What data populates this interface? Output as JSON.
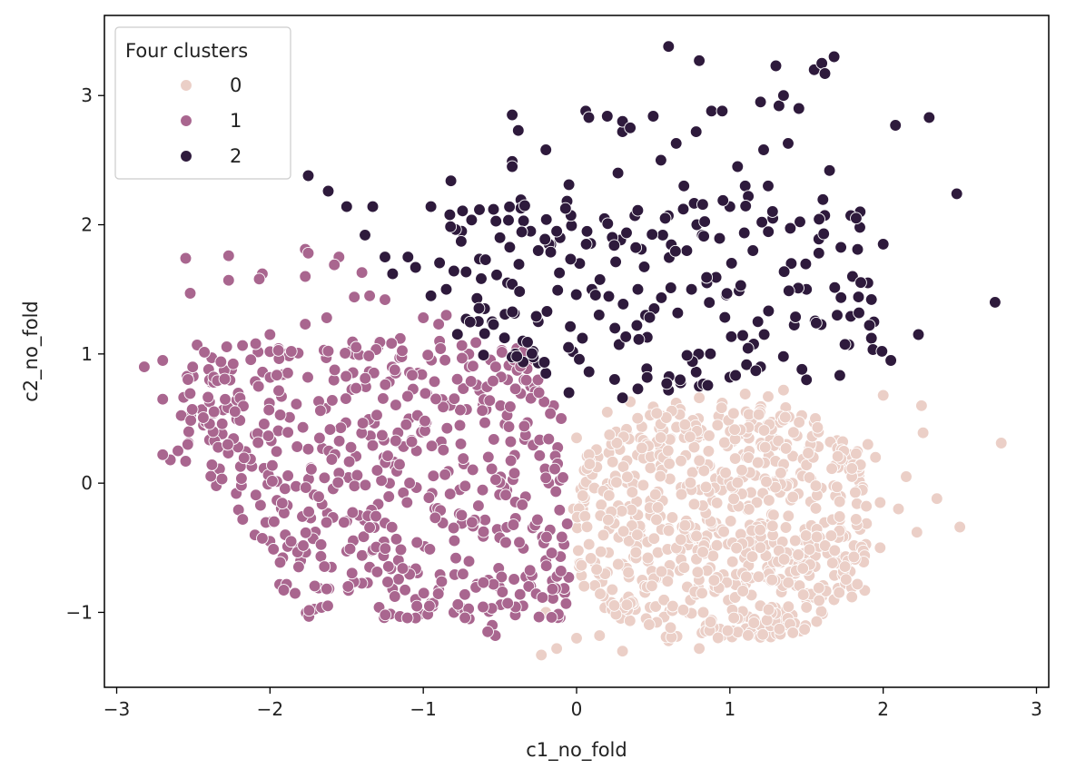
{
  "chart_data": {
    "type": "scatter",
    "title": "",
    "xlabel": "c1_no_fold",
    "ylabel": "c2_no_fold",
    "xlim": [
      -3.08,
      3.08
    ],
    "ylim": [
      -1.58,
      3.62
    ],
    "x_ticks": [
      -3,
      -2,
      -1,
      0,
      1,
      2,
      3
    ],
    "x_tick_labels": [
      "−3",
      "−2",
      "−1",
      "0",
      "1",
      "2",
      "3"
    ],
    "y_ticks": [
      -1,
      0,
      1,
      2,
      3
    ],
    "y_tick_labels": [
      "−1",
      "0",
      "1",
      "2",
      "3"
    ],
    "grid": false,
    "legend": {
      "title": "Four clusters",
      "placement": "top-left",
      "entries": [
        {
          "label": "0",
          "color": "#ebcfc7"
        },
        {
          "label": "1",
          "color": "#a9668f"
        },
        {
          "label": "2",
          "color": "#2e1a3c"
        }
      ]
    },
    "series": [
      {
        "name": "0",
        "color": "#ebcfc7",
        "points": [
          [
            2.77,
            0.31
          ],
          [
            2.5,
            -0.34
          ],
          [
            2.35,
            -0.12
          ],
          [
            2.25,
            0.6
          ],
          [
            2.26,
            0.39
          ],
          [
            2.22,
            -0.38
          ],
          [
            2.15,
            0.05
          ],
          [
            2.1,
            -0.2
          ],
          [
            2.0,
            0.68
          ],
          [
            1.95,
            0.2
          ],
          [
            1.9,
            0.3
          ],
          [
            1.88,
            -0.83
          ],
          [
            1.98,
            -0.5
          ],
          [
            1.98,
            -0.15
          ],
          [
            1.7,
            0.33
          ],
          [
            1.55,
            0.47
          ],
          [
            1.35,
            0.72
          ],
          [
            1.25,
            0.67
          ],
          [
            1.1,
            0.69
          ],
          [
            0.95,
            0.62
          ],
          [
            0.8,
            0.66
          ],
          [
            0.65,
            0.62
          ],
          [
            0.5,
            0.59
          ],
          [
            0.35,
            0.63
          ],
          [
            0.2,
            0.55
          ],
          [
            0.0,
            0.35
          ],
          [
            0.05,
            0.1
          ],
          [
            -0.02,
            -0.2
          ],
          [
            -0.15,
            -0.8
          ],
          [
            -0.2,
            -1.0
          ],
          [
            -0.23,
            -1.33
          ],
          [
            -0.13,
            -1.28
          ],
          [
            0.0,
            -1.2
          ],
          [
            0.15,
            -1.18
          ],
          [
            0.3,
            -1.3
          ],
          [
            0.6,
            -1.22
          ],
          [
            0.8,
            -1.28
          ],
          [
            0.95,
            -1.18
          ],
          [
            1.2,
            -1.1
          ],
          [
            1.35,
            -1.05
          ],
          [
            1.5,
            -0.9
          ],
          [
            1.75,
            -0.78
          ],
          [
            1.7,
            -0.56
          ],
          [
            1.55,
            -0.42
          ]
        ],
        "core_region": {
          "x": [
            0.0,
            1.9
          ],
          "y": [
            -1.2,
            0.6
          ],
          "count": 720
        }
      },
      {
        "name": "1",
        "color": "#a9668f",
        "points": [
          [
            -2.82,
            0.9
          ],
          [
            -2.7,
            0.95
          ],
          [
            -2.7,
            0.65
          ],
          [
            -2.55,
            1.74
          ],
          [
            -2.52,
            1.47
          ],
          [
            -2.27,
            1.76
          ],
          [
            -2.27,
            1.57
          ],
          [
            -2.05,
            1.62
          ],
          [
            -2.07,
            1.58
          ],
          [
            -1.77,
            1.81
          ],
          [
            -1.75,
            1.78
          ],
          [
            -1.77,
            1.6
          ],
          [
            -1.55,
            1.75
          ],
          [
            -1.58,
            1.69
          ],
          [
            -1.4,
            1.63
          ],
          [
            -1.45,
            1.44
          ],
          [
            -1.35,
            1.45
          ],
          [
            -1.25,
            1.42
          ],
          [
            -1.63,
            1.28
          ],
          [
            -1.77,
            1.23
          ],
          [
            -2.0,
            1.15
          ],
          [
            -2.38,
            0.97
          ],
          [
            -2.4,
            0.88
          ],
          [
            -2.25,
            0.88
          ],
          [
            -2.6,
            0.25
          ],
          [
            -2.65,
            0.18
          ],
          [
            -2.7,
            0.22
          ],
          [
            -2.55,
            0.17
          ],
          [
            -2.35,
            -0.02
          ],
          [
            -2.22,
            -0.08
          ],
          [
            -2.0,
            -0.3
          ],
          [
            -1.9,
            -0.4
          ],
          [
            -2.0,
            -0.45
          ],
          [
            -1.8,
            -0.6
          ],
          [
            -1.6,
            -0.65
          ],
          [
            -1.35,
            -0.65
          ],
          [
            -1.2,
            -0.82
          ],
          [
            -1.05,
            -0.9
          ],
          [
            -0.95,
            -0.93
          ],
          [
            -0.8,
            -1.0
          ],
          [
            -0.7,
            -1.05
          ],
          [
            -0.55,
            -1.1
          ],
          [
            -0.53,
            -1.18
          ],
          [
            -0.4,
            -1.02
          ],
          [
            -0.35,
            -0.95
          ],
          [
            -0.58,
            -1.15
          ],
          [
            -1.0,
            1.28
          ],
          [
            -0.9,
            1.23
          ],
          [
            -0.85,
            1.3
          ],
          [
            -1.15,
            1.12
          ],
          [
            -0.7,
            0.9
          ],
          [
            -0.45,
            0.8
          ],
          [
            -0.3,
            0.75
          ],
          [
            -0.15,
            0.6
          ],
          [
            -0.1,
            0.5
          ]
        ],
        "core_region": {
          "x": [
            -2.6,
            -0.05
          ],
          "y": [
            -1.05,
            1.1
          ],
          "count": 560
        }
      },
      {
        "name": "2",
        "color": "#2e1a3c",
        "points": [
          [
            -1.75,
            2.38
          ],
          [
            -1.62,
            2.26
          ],
          [
            -1.5,
            2.14
          ],
          [
            -1.33,
            2.14
          ],
          [
            -1.38,
            1.92
          ],
          [
            -1.25,
            1.75
          ],
          [
            -1.2,
            1.62
          ],
          [
            -1.1,
            1.75
          ],
          [
            -1.05,
            1.67
          ],
          [
            -0.95,
            2.14
          ],
          [
            -0.82,
            2.34
          ],
          [
            -0.95,
            1.45
          ],
          [
            -0.85,
            1.5
          ],
          [
            -0.75,
            1.95
          ],
          [
            -0.72,
            1.27
          ],
          [
            -0.65,
            1.43
          ],
          [
            -0.6,
            1.35
          ],
          [
            -0.55,
            1.25
          ],
          [
            -0.5,
            1.9
          ],
          [
            -0.45,
            1.55
          ],
          [
            -0.42,
            2.85
          ],
          [
            -0.38,
            2.73
          ],
          [
            -0.42,
            2.49
          ],
          [
            -0.42,
            2.45
          ],
          [
            -0.3,
            1.95
          ],
          [
            -0.25,
            1.8
          ],
          [
            -0.2,
            2.58
          ],
          [
            -0.25,
            1.25
          ],
          [
            -0.35,
            1.1
          ],
          [
            -0.4,
            1.0
          ],
          [
            -0.25,
            0.93
          ],
          [
            -0.2,
            0.85
          ],
          [
            -0.05,
            0.7
          ],
          [
            -0.05,
            2.31
          ],
          [
            0.02,
            1.7
          ],
          [
            0.06,
            2.88
          ],
          [
            0.08,
            2.83
          ],
          [
            0.1,
            1.5
          ],
          [
            0.15,
            1.3
          ],
          [
            0.2,
            2.84
          ],
          [
            0.25,
            1.2
          ],
          [
            0.27,
            2.4
          ],
          [
            0.3,
            2.72
          ],
          [
            0.3,
            2.8
          ],
          [
            0.35,
            2.75
          ],
          [
            0.38,
            2.07
          ],
          [
            0.4,
            1.5
          ],
          [
            0.45,
            1.3
          ],
          [
            0.5,
            2.84
          ],
          [
            0.55,
            2.5
          ],
          [
            0.6,
            3.38
          ],
          [
            0.65,
            2.63
          ],
          [
            0.7,
            2.3
          ],
          [
            0.75,
            1.5
          ],
          [
            0.8,
            3.27
          ],
          [
            0.78,
            2.72
          ],
          [
            0.82,
            1.92
          ],
          [
            0.85,
            1.55
          ],
          [
            0.88,
            2.88
          ],
          [
            0.95,
            2.88
          ],
          [
            1.0,
            2.14
          ],
          [
            1.05,
            2.45
          ],
          [
            1.1,
            2.3
          ],
          [
            1.12,
            2.22
          ],
          [
            1.15,
            1.8
          ],
          [
            1.2,
            2.95
          ],
          [
            1.22,
            2.58
          ],
          [
            1.25,
            2.3
          ],
          [
            1.28,
            2.05
          ],
          [
            1.3,
            3.23
          ],
          [
            1.32,
            2.92
          ],
          [
            1.35,
            3.0
          ],
          [
            1.38,
            2.63
          ],
          [
            1.4,
            1.7
          ],
          [
            1.45,
            2.9
          ],
          [
            1.5,
            1.5
          ],
          [
            1.55,
            3.2
          ],
          [
            1.6,
            3.25
          ],
          [
            1.58,
            1.78
          ],
          [
            1.62,
            3.17
          ],
          [
            1.65,
            2.42
          ],
          [
            1.68,
            3.3
          ],
          [
            1.7,
            1.3
          ],
          [
            1.8,
            1.6
          ],
          [
            1.85,
            2.1
          ],
          [
            1.9,
            1.55
          ],
          [
            2.0,
            1.85
          ],
          [
            2.05,
            0.95
          ],
          [
            2.08,
            2.77
          ],
          [
            2.23,
            1.15
          ],
          [
            2.3,
            2.83
          ],
          [
            2.48,
            2.24
          ],
          [
            2.73,
            1.4
          ],
          [
            1.2,
            0.9
          ],
          [
            1.0,
            0.82
          ],
          [
            0.8,
            0.75
          ],
          [
            0.6,
            0.72
          ],
          [
            0.4,
            0.73
          ],
          [
            0.3,
            0.66
          ],
          [
            1.5,
            0.8
          ]
        ],
        "core_region": {
          "x": [
            -0.9,
            2.0
          ],
          "y": [
            0.75,
            2.2
          ],
          "count": 190
        }
      }
    ]
  }
}
